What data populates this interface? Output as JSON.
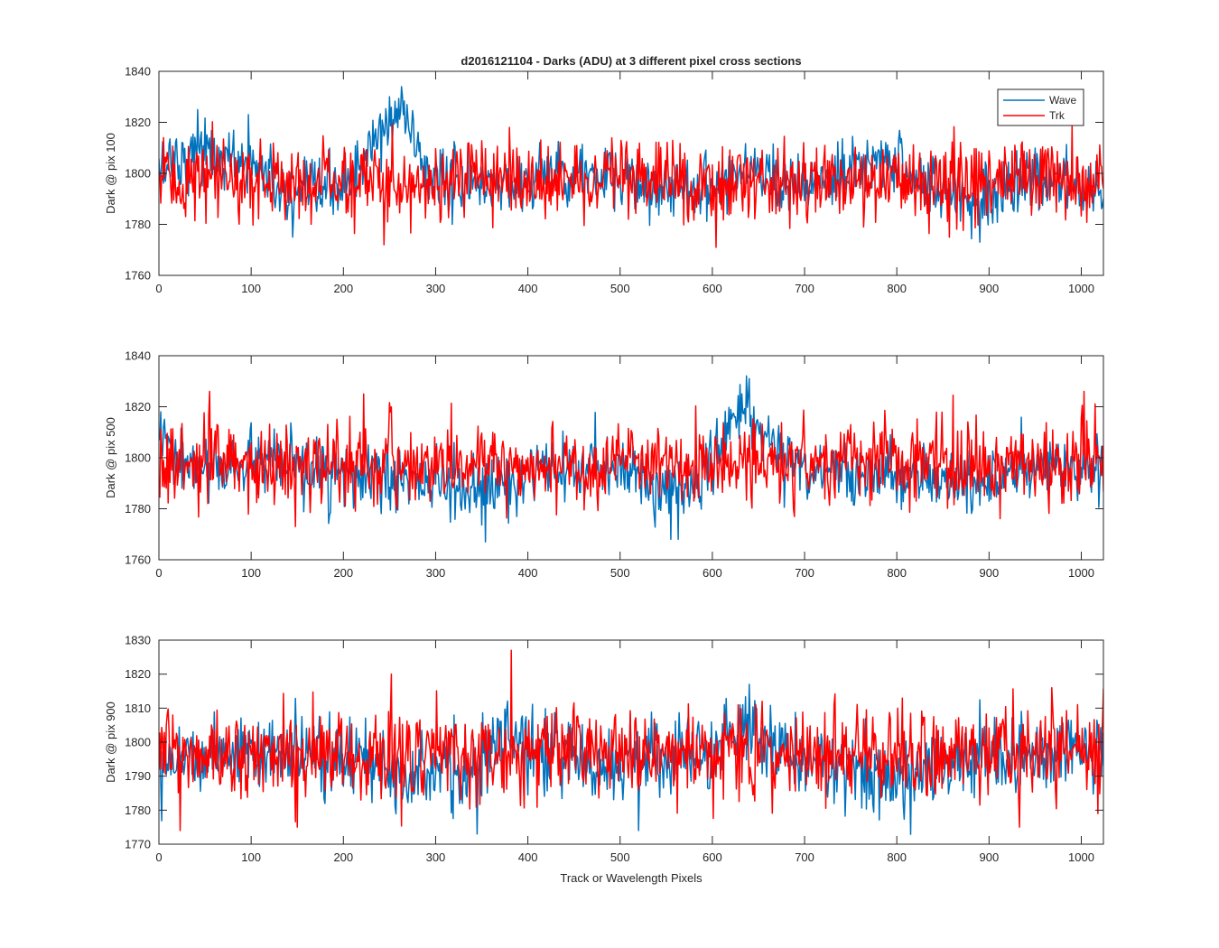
{
  "figure": {
    "title": "d2016121104 - Darks (ADU) at 3 different pixel cross sections",
    "xlabel": "Track or Wavelength Pixels"
  },
  "legend": {
    "placement": "top-right",
    "entries": [
      {
        "label": "Wave",
        "color": "#0072BD"
      },
      {
        "label": "Trk",
        "color": "#FF0000"
      }
    ]
  },
  "colors": {
    "wave": "#0072BD",
    "trk": "#FF0000",
    "axis": "#262626",
    "background": "#ffffff"
  },
  "chart_data": [
    {
      "type": "line",
      "ylabel": "Dark @ pix 100",
      "xlim": [
        0,
        1024
      ],
      "ylim": [
        1760,
        1840
      ],
      "xticks": [
        0,
        100,
        200,
        300,
        400,
        500,
        600,
        700,
        800,
        900,
        1000
      ],
      "yticks": [
        1760,
        1780,
        1800,
        1820,
        1840
      ],
      "grid": false,
      "legend": true,
      "series": [
        {
          "name": "Wave",
          "color": "#0072BD",
          "baseline": 1797,
          "noise": 6,
          "features": [
            {
              "x": 0,
              "y": 1800
            },
            {
              "x": 15,
              "y": 1808
            },
            {
              "x": 30,
              "y": 1803
            },
            {
              "x": 40,
              "y": 1812
            },
            {
              "x": 65,
              "y": 1805
            },
            {
              "x": 90,
              "y": 1804
            },
            {
              "x": 110,
              "y": 1803
            },
            {
              "x": 140,
              "y": 1789
            },
            {
              "x": 180,
              "y": 1793
            },
            {
              "x": 210,
              "y": 1798
            },
            {
              "x": 235,
              "y": 1812
            },
            {
              "x": 250,
              "y": 1820
            },
            {
              "x": 262,
              "y": 1824
            },
            {
              "x": 275,
              "y": 1816
            },
            {
              "x": 290,
              "y": 1800
            },
            {
              "x": 330,
              "y": 1795
            },
            {
              "x": 400,
              "y": 1797
            },
            {
              "x": 430,
              "y": 1802
            },
            {
              "x": 500,
              "y": 1796
            },
            {
              "x": 560,
              "y": 1795
            },
            {
              "x": 600,
              "y": 1795
            },
            {
              "x": 640,
              "y": 1803
            },
            {
              "x": 700,
              "y": 1794
            },
            {
              "x": 760,
              "y": 1800
            },
            {
              "x": 790,
              "y": 1808
            },
            {
              "x": 800,
              "y": 1805
            },
            {
              "x": 830,
              "y": 1795
            },
            {
              "x": 880,
              "y": 1790
            },
            {
              "x": 920,
              "y": 1795
            },
            {
              "x": 960,
              "y": 1798
            },
            {
              "x": 1000,
              "y": 1795
            },
            {
              "x": 1024,
              "y": 1795
            }
          ],
          "extremes": [
            [
              263,
              1834
            ],
            [
              42,
              1825
            ],
            [
              97,
              1823
            ],
            [
              890,
              1773
            ],
            [
              145,
              1775
            ]
          ]
        },
        {
          "name": "Trk",
          "color": "#FF0000",
          "baseline": 1796,
          "noise": 7.5,
          "features": [
            {
              "x": 0,
              "y": 1797
            },
            {
              "x": 250,
              "y": 1797
            },
            {
              "x": 500,
              "y": 1797
            },
            {
              "x": 750,
              "y": 1797
            },
            {
              "x": 1024,
              "y": 1797
            }
          ],
          "extremes": [
            [
              244,
              1772
            ],
            [
              604,
              1771
            ],
            [
              990,
              1819
            ],
            [
              5,
              1814
            ],
            [
              380,
              1818
            ]
          ]
        }
      ]
    },
    {
      "type": "line",
      "ylabel": "Dark @ pix 500",
      "xlim": [
        0,
        1024
      ],
      "ylim": [
        1760,
        1840
      ],
      "xticks": [
        0,
        100,
        200,
        300,
        400,
        500,
        600,
        700,
        800,
        900,
        1000
      ],
      "yticks": [
        1760,
        1780,
        1800,
        1820,
        1840
      ],
      "grid": false,
      "legend": false,
      "series": [
        {
          "name": "Wave",
          "color": "#0072BD",
          "baseline": 1795,
          "noise": 6,
          "features": [
            {
              "x": 0,
              "y": 1808
            },
            {
              "x": 20,
              "y": 1798
            },
            {
              "x": 60,
              "y": 1795
            },
            {
              "x": 100,
              "y": 1798
            },
            {
              "x": 200,
              "y": 1793
            },
            {
              "x": 300,
              "y": 1790
            },
            {
              "x": 350,
              "y": 1786
            },
            {
              "x": 400,
              "y": 1792
            },
            {
              "x": 500,
              "y": 1797
            },
            {
              "x": 550,
              "y": 1787
            },
            {
              "x": 580,
              "y": 1790
            },
            {
              "x": 600,
              "y": 1798
            },
            {
              "x": 620,
              "y": 1815
            },
            {
              "x": 635,
              "y": 1820
            },
            {
              "x": 650,
              "y": 1812
            },
            {
              "x": 670,
              "y": 1802
            },
            {
              "x": 700,
              "y": 1796
            },
            {
              "x": 800,
              "y": 1793
            },
            {
              "x": 900,
              "y": 1790
            },
            {
              "x": 950,
              "y": 1797
            },
            {
              "x": 1024,
              "y": 1795
            }
          ],
          "extremes": [
            [
              640,
              1831
            ],
            [
              354,
              1767
            ],
            [
              555,
              1768
            ],
            [
              563,
              1768
            ],
            [
              2,
              1818
            ]
          ]
        },
        {
          "name": "Trk",
          "color": "#FF0000",
          "baseline": 1797,
          "noise": 7.5,
          "features": [
            {
              "x": 0,
              "y": 1797
            },
            {
              "x": 400,
              "y": 1797
            },
            {
              "x": 700,
              "y": 1798
            },
            {
              "x": 1024,
              "y": 1798
            }
          ],
          "extremes": [
            [
              55,
              1826
            ],
            [
              222,
              1825
            ],
            [
              1003,
              1826
            ],
            [
              148,
              1773
            ]
          ]
        }
      ]
    },
    {
      "type": "line",
      "ylabel": "Dark @ pix 900",
      "xlim": [
        0,
        1024
      ],
      "ylim": [
        1770,
        1830
      ],
      "xticks": [
        0,
        100,
        200,
        300,
        400,
        500,
        600,
        700,
        800,
        900,
        1000
      ],
      "yticks": [
        1770,
        1780,
        1790,
        1800,
        1810,
        1820,
        1830
      ],
      "grid": false,
      "legend": false,
      "series": [
        {
          "name": "Wave",
          "color": "#0072BD",
          "baseline": 1796,
          "noise": 5.5,
          "features": [
            {
              "x": 0,
              "y": 1796
            },
            {
              "x": 100,
              "y": 1797
            },
            {
              "x": 200,
              "y": 1795
            },
            {
              "x": 340,
              "y": 1790
            },
            {
              "x": 380,
              "y": 1802
            },
            {
              "x": 450,
              "y": 1794
            },
            {
              "x": 500,
              "y": 1794
            },
            {
              "x": 600,
              "y": 1797
            },
            {
              "x": 640,
              "y": 1805
            },
            {
              "x": 660,
              "y": 1800
            },
            {
              "x": 700,
              "y": 1794
            },
            {
              "x": 800,
              "y": 1790
            },
            {
              "x": 900,
              "y": 1796
            },
            {
              "x": 1024,
              "y": 1797
            }
          ],
          "extremes": [
            [
              345,
              1773
            ],
            [
              520,
              1774
            ],
            [
              640,
              1817
            ]
          ]
        },
        {
          "name": "Trk",
          "color": "#FF0000",
          "baseline": 1796,
          "noise": 6.5,
          "features": [
            {
              "x": 0,
              "y": 1796
            },
            {
              "x": 512,
              "y": 1797
            },
            {
              "x": 1024,
              "y": 1797
            }
          ],
          "extremes": [
            [
              382,
              1827
            ],
            [
              252,
              1820
            ],
            [
              23,
              1774
            ],
            [
              150,
              1775
            ],
            [
              933,
              1775
            ],
            [
              1018,
              1779
            ]
          ]
        }
      ]
    }
  ]
}
